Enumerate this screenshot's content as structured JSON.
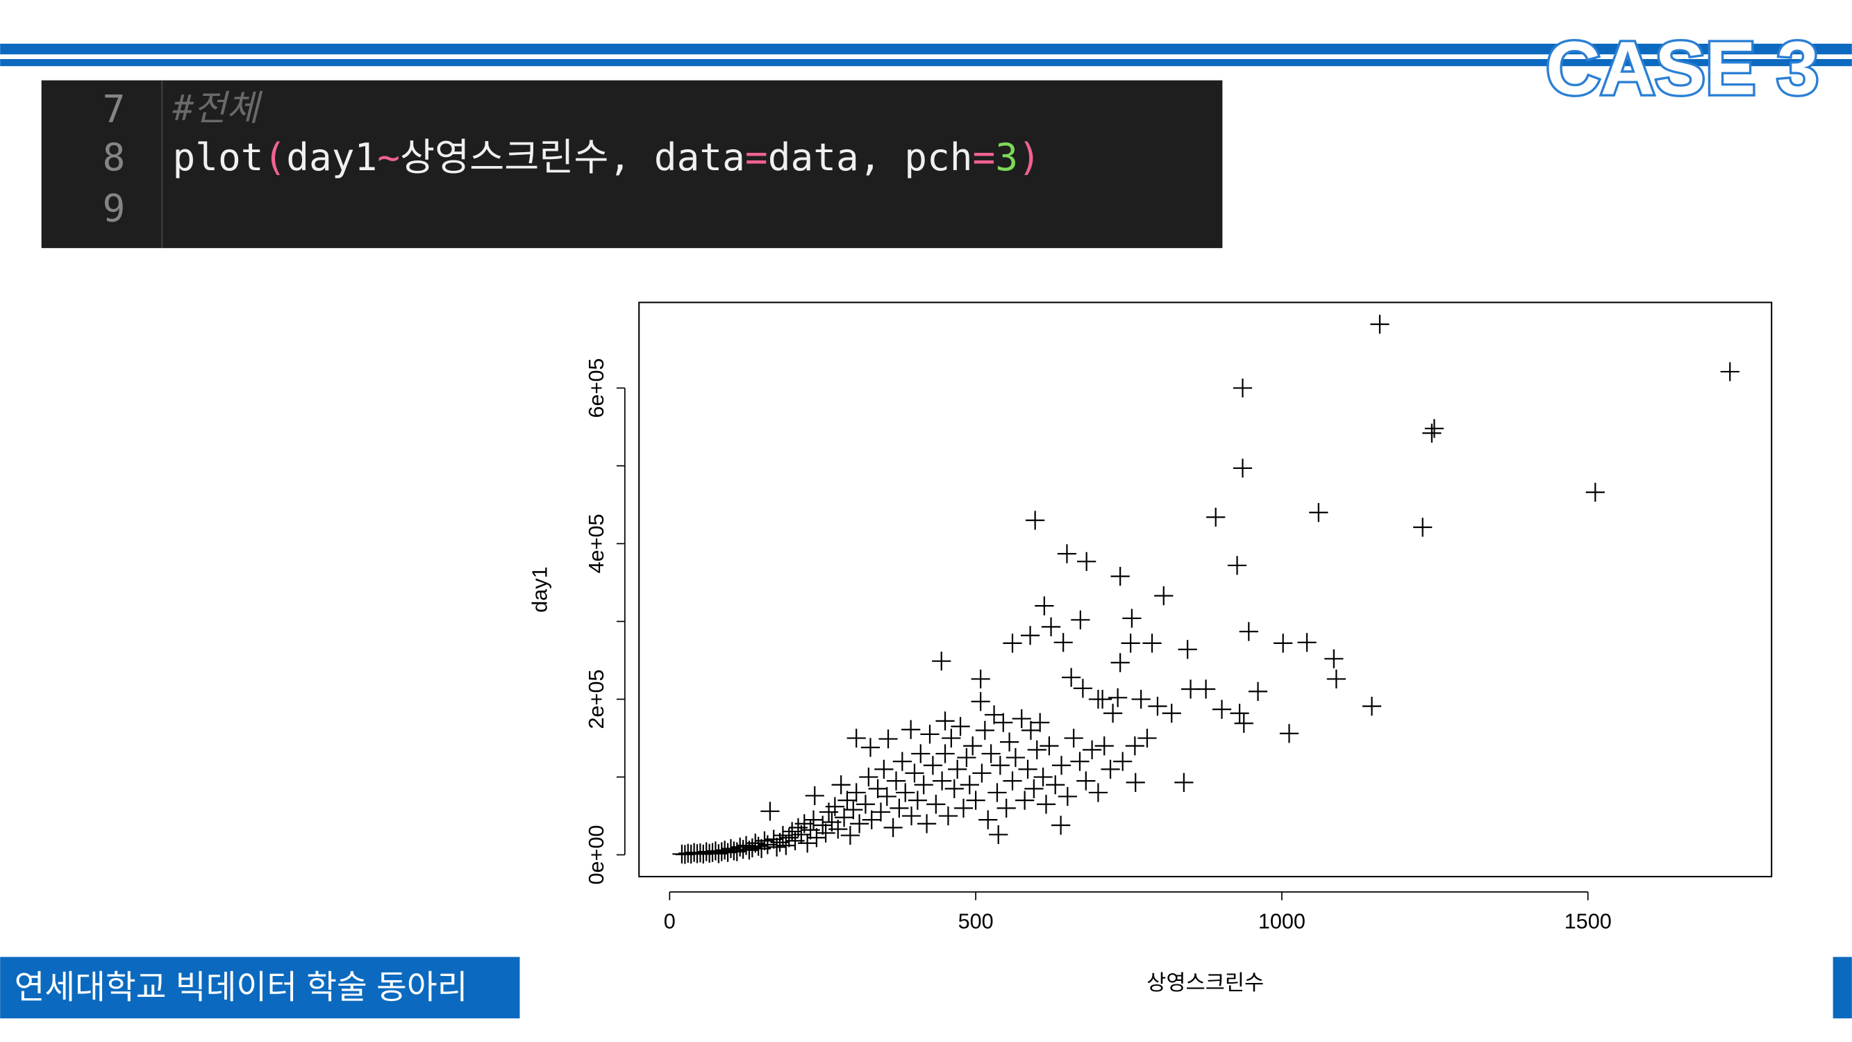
{
  "case_label": "CASE 3",
  "code": {
    "lines": [
      {
        "number": "7",
        "text": "#전체"
      },
      {
        "number": "8",
        "tokens": [
          {
            "text": "plot",
            "color": "#f0f0f0"
          },
          {
            "text": "(",
            "color": "#f06292"
          },
          {
            "text": "day1",
            "color": "#f0f0f0"
          },
          {
            "text": "~",
            "color": "#f06292"
          },
          {
            "text": "상영스크린수",
            "color": "#f0f0f0"
          },
          {
            "text": ", data",
            "color": "#f0f0f0"
          },
          {
            "text": "=",
            "color": "#f06292"
          },
          {
            "text": "data, pch",
            "color": "#f0f0f0"
          },
          {
            "text": "=",
            "color": "#f06292"
          },
          {
            "text": "3",
            "color": "#7ed957"
          },
          {
            "text": ")",
            "color": "#f06292"
          }
        ]
      },
      {
        "number": "9"
      }
    ]
  },
  "footer": "연세대학교 빅데이터 학술 동아리",
  "chart_data": {
    "type": "scatter",
    "x_label": "상영스크린수",
    "y_label": "day1",
    "color": "#000000",
    "marker": "plus",
    "xlim": [
      -50,
      1800
    ],
    "ylim": [
      -28000,
      710000
    ],
    "xticks": [
      0,
      500,
      1000,
      1500
    ],
    "yticks": [
      {
        "value": 0,
        "label": "0e+00"
      },
      {
        "value": 100000,
        "label": null
      },
      {
        "value": 200000,
        "label": "2e+05"
      },
      {
        "value": 300000,
        "label": null
      },
      {
        "value": 400000,
        "label": "4e+05"
      },
      {
        "value": 500000,
        "label": null
      },
      {
        "value": 600000,
        "label": "6e+05"
      }
    ],
    "x": [
      1160,
      1732,
      936,
      1249,
      1245,
      936,
      1512,
      597,
      1060,
      892,
      1230,
      927,
      649,
      681,
      736,
      807,
      612,
      671,
      755,
      623,
      946,
      589,
      643,
      560,
      753,
      788,
      1002,
      1041,
      1085,
      444,
      736,
      846,
      1089,
      508,
      656,
      675,
      851,
      876,
      961,
      1147,
      902,
      931,
      938,
      1012,
      797,
      770,
      732,
      707,
      820,
      724,
      840,
      761,
      639,
      537,
      20,
      25,
      30,
      35,
      40,
      45,
      50,
      55,
      60,
      65,
      70,
      75,
      80,
      85,
      90,
      95,
      100,
      105,
      110,
      115,
      120,
      125,
      130,
      135,
      140,
      145,
      150,
      155,
      160,
      164,
      170,
      175,
      180,
      185,
      190,
      195,
      200,
      205,
      210,
      215,
      220,
      225,
      230,
      235,
      240,
      237,
      250,
      255,
      260,
      265,
      270,
      275,
      280,
      285,
      290,
      295,
      300,
      305,
      310,
      305,
      320,
      325,
      330,
      328,
      340,
      345,
      350,
      355,
      357,
      365,
      370,
      375,
      380,
      385,
      394,
      395,
      400,
      405,
      410,
      415,
      420,
      425,
      430,
      435,
      450,
      445,
      450,
      455,
      460,
      465,
      470,
      475,
      480,
      485,
      490,
      495,
      500,
      508,
      510,
      515,
      520,
      525,
      530,
      535,
      540,
      545,
      550,
      555,
      560,
      565,
      575,
      580,
      585,
      590,
      595,
      600,
      605,
      610,
      615,
      620,
      630,
      640,
      650,
      660,
      670,
      680,
      690,
      700,
      710,
      720,
      740,
      760,
      780,
      700
    ],
    "values": [
      682000,
      621000,
      600000,
      548000,
      542000,
      497000,
      466000,
      430000,
      440000,
      434000,
      421000,
      372000,
      387000,
      377000,
      358000,
      333000,
      320000,
      302000,
      304000,
      293000,
      287000,
      282000,
      273000,
      272000,
      272000,
      272000,
      272000,
      273000,
      252000,
      249000,
      247000,
      264000,
      226000,
      226000,
      228000,
      214000,
      213000,
      213000,
      210000,
      191000,
      187000,
      182000,
      169000,
      156000,
      191000,
      200000,
      202000,
      200000,
      182000,
      182000,
      93000,
      93000,
      38000,
      26000,
      1000,
      500,
      2000,
      1000,
      3000,
      1500,
      2500,
      1000,
      4000,
      2000,
      3000,
      5000,
      1500,
      4000,
      6000,
      3000,
      8000,
      5000,
      4000,
      10000,
      7000,
      12000,
      6000,
      9000,
      15000,
      11000,
      8000,
      18000,
      13000,
      56000,
      20000,
      10000,
      16000,
      25000,
      12000,
      22000,
      30000,
      18000,
      35000,
      26000,
      40000,
      15000,
      32000,
      45000,
      22000,
      76000,
      38000,
      28000,
      55000,
      42000,
      62000,
      33000,
      90000,
      48000,
      70000,
      25000,
      58000,
      80000,
      40000,
      150000,
      65000,
      100000,
      45000,
      138000,
      85000,
      55000,
      110000,
      75000,
      149000,
      35000,
      95000,
      60000,
      120000,
      80000,
      161000,
      50000,
      105000,
      70000,
      130000,
      90000,
      40000,
      155000,
      115000,
      65000,
      172000,
      95000,
      130000,
      50000,
      150000,
      85000,
      110000,
      165000,
      60000,
      125000,
      90000,
      140000,
      70000,
      197000,
      105000,
      160000,
      45000,
      130000,
      180000,
      80000,
      115000,
      170000,
      60000,
      145000,
      95000,
      125000,
      175000,
      70000,
      110000,
      160000,
      85000,
      135000,
      170000,
      100000,
      65000,
      140000,
      90000,
      115000,
      75000,
      150000,
      120000,
      95000,
      135000,
      80000,
      140000,
      110000,
      120000,
      140000,
      150000,
      200000
    ]
  }
}
